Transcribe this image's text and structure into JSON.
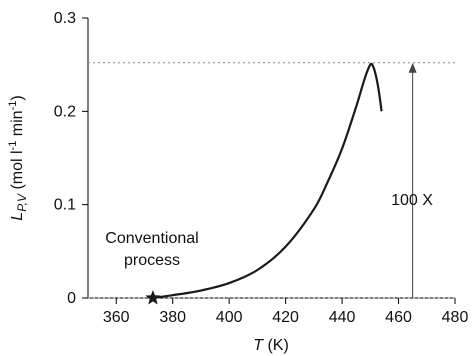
{
  "chart_data": {
    "type": "line",
    "xlabel": {
      "var": "T",
      "unit": " (K)"
    },
    "ylabel": {
      "var": "L",
      "sub": "P,V",
      "unit_pre": " (mol l",
      "exp1": "-1",
      "unit_mid": " min",
      "exp2": "-1",
      "unit_post": ")"
    },
    "xlim": [
      350,
      480
    ],
    "ylim": [
      0,
      0.3
    ],
    "x_ticks": [
      360,
      380,
      400,
      420,
      440,
      460,
      480
    ],
    "y_ticks": [
      0,
      0.1,
      0.2,
      0.3
    ],
    "y_tick_labels": [
      "0",
      "0.1",
      "0.2",
      "0.3"
    ],
    "grid": false,
    "series": [
      {
        "x": [
          373,
          380,
          390,
          400,
          410,
          420,
          430,
          435,
          440,
          445,
          448,
          450,
          451,
          452,
          453,
          454
        ],
        "y": [
          0.0,
          0.003,
          0.008,
          0.016,
          0.03,
          0.055,
          0.095,
          0.125,
          0.16,
          0.205,
          0.235,
          0.25,
          0.248,
          0.238,
          0.222,
          0.2
        ],
        "color": "#1a1a1a"
      }
    ],
    "reference_lines": [
      {
        "y": 0.252,
        "style": "dotted",
        "color": "#888888"
      },
      {
        "y": 0.0,
        "style": "dotted",
        "color": "#888888"
      }
    ],
    "marker": {
      "x": 373,
      "y": 0.0,
      "shape": "star"
    },
    "arrow": {
      "x": 465,
      "y_from": 0.0,
      "y_to": 0.252
    },
    "annotations": {
      "marker_label_line1": "Conventional",
      "marker_label_line2": "process",
      "arrow_label": "100 X"
    }
  }
}
